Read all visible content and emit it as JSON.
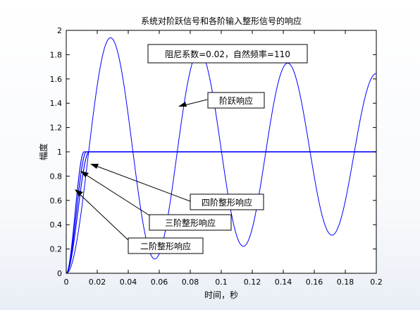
{
  "chart_data": {
    "type": "line",
    "title": "系统对阶跃信号和各阶输入整形信号的响应",
    "xlabel": "时间，秒",
    "ylabel": "幅度",
    "xlim": [
      0,
      0.2
    ],
    "ylim": [
      0,
      2
    ],
    "x_ticks": [
      "0",
      "0.02",
      "0.04",
      "0.06",
      "0.08",
      "0.1",
      "0.12",
      "0.14",
      "0.16",
      "0.18",
      "0.2"
    ],
    "y_ticks": [
      "0",
      "0.2",
      "0.4",
      "0.6",
      "0.8",
      "1",
      "1.2",
      "1.4",
      "1.6",
      "1.8",
      "2"
    ],
    "grid": false,
    "series_color": "#0000ff",
    "parameters": {
      "damping_ratio": 0.02,
      "natural_frequency": 110
    },
    "series": [
      {
        "label": "阶跃响应",
        "description": "underdamped step response, first peak about 1.94, decaying oscillation around 1"
      },
      {
        "label": "二阶整形响应",
        "description": "rises to 1 by about t=0.012 with no overshoot"
      },
      {
        "label": "三阶整形响应",
        "description": "rises to 1 by about t=0.013 with no overshoot"
      },
      {
        "label": "四阶整形响应",
        "description": "rises to 1 by about t=0.015 with no overshoot"
      }
    ],
    "info_box": "阻尼系数=0.02，自然频率=110"
  }
}
